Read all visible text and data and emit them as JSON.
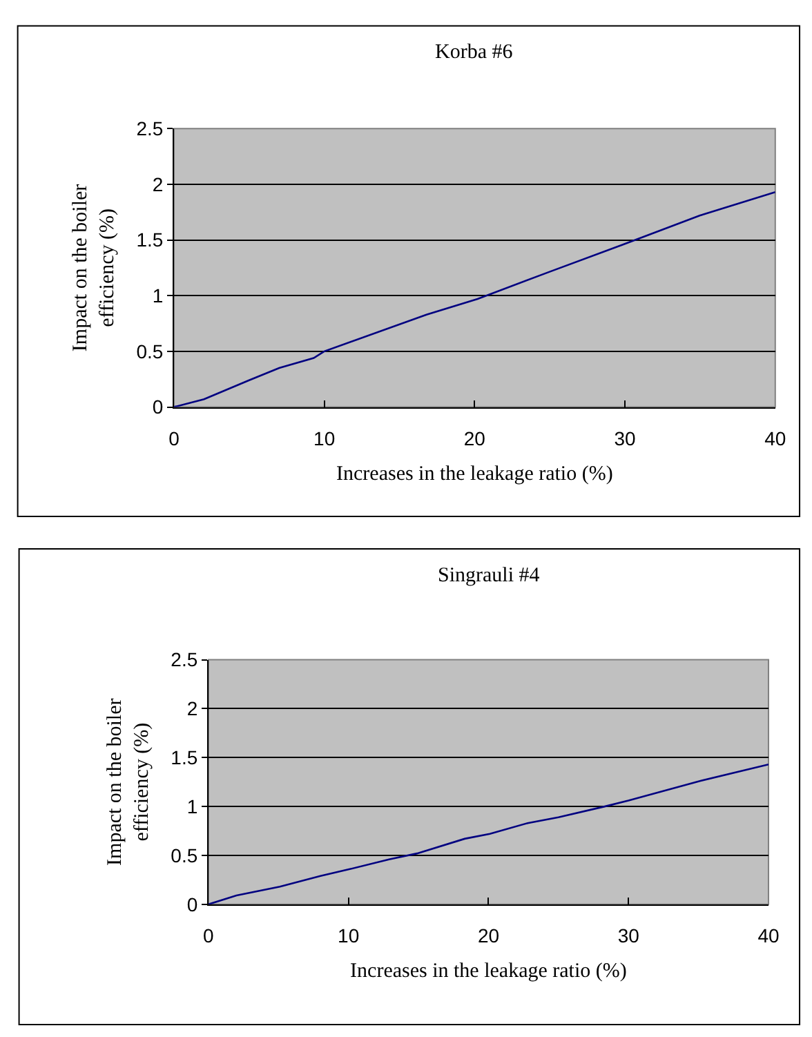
{
  "chart_data": [
    {
      "type": "line",
      "title": "Korba #6",
      "xlabel": "Increases in the leakage ratio (%)",
      "ylabel": "Impact on the boiler efficiency (%)",
      "xlim": [
        0,
        40
      ],
      "xticks": [
        0,
        10,
        20,
        30,
        40
      ],
      "ylim": [
        0,
        2.5
      ],
      "yticks": [
        0,
        0.5,
        1,
        1.5,
        2,
        2.5
      ],
      "grid": "y",
      "marker": "none",
      "line_style": "solid",
      "series": [
        {
          "color": "#000080",
          "x": [
            0,
            2,
            5,
            7,
            9.3,
            10,
            16.8,
            20.2,
            24.9,
            29.9,
            35,
            40
          ],
          "values": [
            0,
            0.07,
            0.24,
            0.35,
            0.44,
            0.5,
            0.83,
            0.97,
            1.21,
            1.46,
            1.72,
            1.93
          ]
        }
      ]
    },
    {
      "type": "line",
      "title": "Singrauli #4",
      "xlabel": "Increases in the leakage ratio (%)",
      "ylabel": "Impact on the boiler efficiency (%)",
      "xlim": [
        0,
        40
      ],
      "xticks": [
        0,
        10,
        20,
        30,
        40
      ],
      "ylim": [
        0,
        2.5
      ],
      "yticks": [
        0,
        0.5,
        1,
        1.5,
        2,
        2.5
      ],
      "grid": "y",
      "marker": "none",
      "line_style": "solid",
      "series": [
        {
          "color": "#000080",
          "x": [
            0,
            2,
            5.1,
            8,
            10.1,
            12.9,
            14.9,
            18.3,
            20.1,
            22.8,
            25,
            28.3,
            30,
            35.1,
            40
          ],
          "values": [
            0,
            0.09,
            0.18,
            0.29,
            0.36,
            0.46,
            0.52,
            0.67,
            0.72,
            0.83,
            0.89,
            1.0,
            1.06,
            1.26,
            1.43
          ]
        }
      ]
    }
  ]
}
